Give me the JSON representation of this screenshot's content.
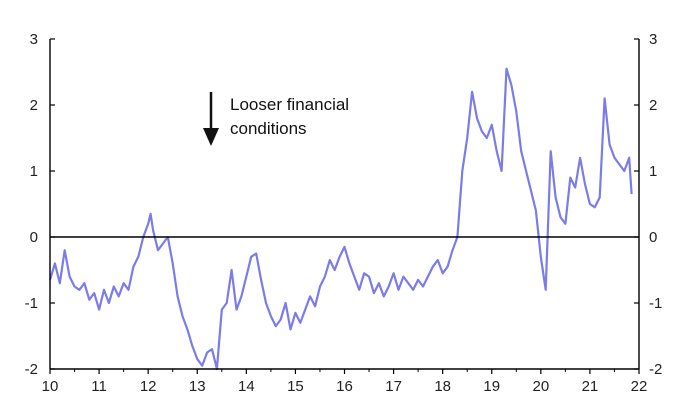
{
  "chart_data": {
    "type": "line",
    "title": "",
    "xlabel": "",
    "ylabel": "",
    "x_ticks": [
      "10",
      "11",
      "12",
      "13",
      "14",
      "15",
      "16",
      "17",
      "18",
      "19",
      "20",
      "21",
      "22"
    ],
    "y_ticks": [
      "3",
      "2",
      "1",
      "0",
      "-1",
      "-2"
    ],
    "xlim": [
      2010,
      2022
    ],
    "ylim": [
      -2,
      3
    ],
    "grid": false,
    "legend": "none",
    "zero_line": true,
    "annotation": {
      "line1": "Looser financial",
      "line2": "conditions",
      "arrow": "down"
    },
    "series": [
      {
        "color": "#7b7bea",
        "x": [
          2010.0,
          2010.1,
          2010.2,
          2010.3,
          2010.4,
          2010.5,
          2010.6,
          2010.7,
          2010.8,
          2010.9,
          2011.0,
          2011.1,
          2011.2,
          2011.3,
          2011.4,
          2011.5,
          2011.6,
          2011.7,
          2011.8,
          2011.9,
          2012.0,
          2012.05,
          2012.1,
          2012.2,
          2012.3,
          2012.4,
          2012.5,
          2012.6,
          2012.7,
          2012.8,
          2012.9,
          2013.0,
          2013.1,
          2013.2,
          2013.3,
          2013.4,
          2013.5,
          2013.6,
          2013.7,
          2013.8,
          2013.9,
          2014.0,
          2014.1,
          2014.2,
          2014.3,
          2014.4,
          2014.5,
          2014.6,
          2014.7,
          2014.8,
          2014.9,
          2015.0,
          2015.1,
          2015.2,
          2015.3,
          2015.4,
          2015.5,
          2015.6,
          2015.7,
          2015.8,
          2015.9,
          2016.0,
          2016.1,
          2016.2,
          2016.3,
          2016.4,
          2016.5,
          2016.6,
          2016.7,
          2016.8,
          2016.9,
          2017.0,
          2017.1,
          2017.2,
          2017.3,
          2017.4,
          2017.5,
          2017.6,
          2017.7,
          2017.8,
          2017.9,
          2018.0,
          2018.1,
          2018.2,
          2018.3,
          2018.4,
          2018.5,
          2018.6,
          2018.7,
          2018.8,
          2018.9,
          2019.0,
          2019.1,
          2019.2,
          2019.3,
          2019.4,
          2019.5,
          2019.6,
          2019.7,
          2019.8,
          2019.9,
          2020.0,
          2020.1,
          2020.2,
          2020.3,
          2020.4,
          2020.5,
          2020.6,
          2020.7,
          2020.8,
          2020.9,
          2021.0,
          2021.1,
          2021.2,
          2021.3,
          2021.4,
          2021.5,
          2021.6,
          2021.7,
          2021.8,
          2021.85
        ],
        "y": [
          -0.65,
          -0.4,
          -0.7,
          -0.2,
          -0.6,
          -0.75,
          -0.8,
          -0.7,
          -0.95,
          -0.85,
          -1.1,
          -0.8,
          -1.0,
          -0.75,
          -0.9,
          -0.7,
          -0.8,
          -0.45,
          -0.3,
          0.0,
          0.2,
          0.35,
          0.1,
          -0.2,
          -0.1,
          0.0,
          -0.4,
          -0.9,
          -1.2,
          -1.4,
          -1.65,
          -1.85,
          -1.95,
          -1.75,
          -1.7,
          -2.0,
          -1.1,
          -1.0,
          -0.5,
          -1.1,
          -0.9,
          -0.6,
          -0.3,
          -0.25,
          -0.65,
          -1.0,
          -1.2,
          -1.35,
          -1.25,
          -1.0,
          -1.4,
          -1.15,
          -1.3,
          -1.1,
          -0.9,
          -1.05,
          -0.75,
          -0.6,
          -0.35,
          -0.5,
          -0.3,
          -0.15,
          -0.4,
          -0.6,
          -0.8,
          -0.55,
          -0.6,
          -0.85,
          -0.7,
          -0.9,
          -0.75,
          -0.55,
          -0.8,
          -0.6,
          -0.7,
          -0.8,
          -0.65,
          -0.75,
          -0.6,
          -0.45,
          -0.35,
          -0.55,
          -0.45,
          -0.2,
          0.0,
          1.0,
          1.5,
          2.2,
          1.8,
          1.6,
          1.5,
          1.7,
          1.3,
          1.0,
          2.55,
          2.3,
          1.9,
          1.3,
          1.0,
          0.7,
          0.4,
          -0.3,
          -0.8,
          1.3,
          0.6,
          0.3,
          0.2,
          0.9,
          0.75,
          1.2,
          0.8,
          0.5,
          0.45,
          0.6,
          2.1,
          1.4,
          1.2,
          1.1,
          1.0,
          1.2,
          0.65
        ]
      }
    ]
  }
}
